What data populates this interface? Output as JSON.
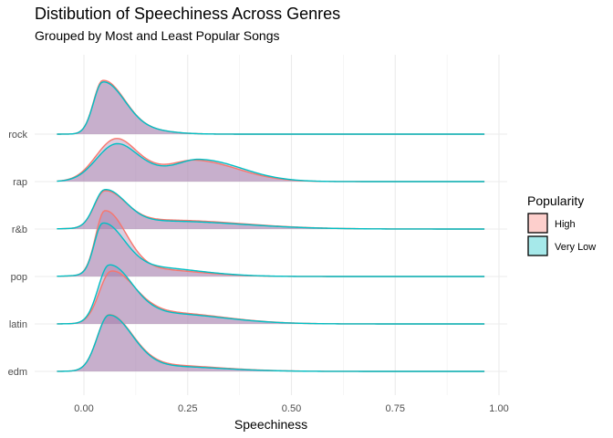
{
  "chart_data": {
    "type": "ridgeline",
    "title": "Distibution of Speechiness Across Genres",
    "subtitle": "Grouped by Most and Least Popular Songs",
    "xlabel": "Speechiness",
    "ylabel": "",
    "xlim": [
      -0.1,
      1.0
    ],
    "x_ticks": [
      0.0,
      0.25,
      0.5,
      0.75,
      1.0
    ],
    "x_tick_labels": [
      "0.00",
      "0.25",
      "0.50",
      "0.75",
      "1.00"
    ],
    "categories": [
      "edm",
      "latin",
      "pop",
      "r&b",
      "rap",
      "rock"
    ],
    "legend": {
      "title": "Popularity",
      "position": "right",
      "entries": [
        {
          "label": "High",
          "color": "#F8766D"
        },
        {
          "label": "Very Low",
          "color": "#00BFC4"
        }
      ]
    },
    "fill_color": "#A882AF",
    "grid": true,
    "x_range": [
      -0.065,
      0.965
    ],
    "series": [
      {
        "name": "High",
        "color": "#F8766D",
        "genres": {
          "rock": [
            [
              0.045,
              1.0,
              0.022,
              0.05
            ],
            [
              0.12,
              0.1,
              0.05,
              0.07
            ]
          ],
          "rap": [
            [
              0.07,
              0.6,
              0.045,
              0.045
            ],
            [
              0.27,
              0.4,
              0.06,
              0.1
            ],
            [
              0.12,
              0.3,
              0.06,
              0.06
            ]
          ],
          "r&b": [
            [
              0.05,
              0.68,
              0.025,
              0.05
            ],
            [
              0.2,
              0.17,
              0.1,
              0.18
            ]
          ],
          "pop": [
            [
              0.05,
              1.2,
              0.022,
              0.05
            ],
            [
              0.15,
              0.14,
              0.08,
              0.12
            ]
          ],
          "latin": [
            [
              0.065,
              0.95,
              0.028,
              0.055
            ],
            [
              0.19,
              0.22,
              0.08,
              0.14
            ]
          ],
          "edm": [
            [
              0.06,
              1.05,
              0.028,
              0.055
            ],
            [
              0.18,
              0.12,
              0.08,
              0.14
            ]
          ]
        }
      },
      {
        "name": "Very Low",
        "color": "#00BFC4",
        "genres": {
          "rock": [
            [
              0.045,
              0.97,
              0.022,
              0.05
            ],
            [
              0.12,
              0.1,
              0.05,
              0.07
            ]
          ],
          "rap": [
            [
              0.07,
              0.5,
              0.045,
              0.045
            ],
            [
              0.28,
              0.42,
              0.06,
              0.1
            ],
            [
              0.12,
              0.3,
              0.06,
              0.06
            ]
          ],
          "r&b": [
            [
              0.05,
              0.71,
              0.025,
              0.05
            ],
            [
              0.2,
              0.15,
              0.1,
              0.18
            ]
          ],
          "pop": [
            [
              0.045,
              0.95,
              0.02,
              0.05
            ],
            [
              0.15,
              0.18,
              0.08,
              0.12
            ]
          ],
          "latin": [
            [
              0.06,
              1.08,
              0.026,
              0.055
            ],
            [
              0.19,
              0.2,
              0.08,
              0.14
            ]
          ],
          "edm": [
            [
              0.06,
              1.05,
              0.028,
              0.055
            ],
            [
              0.18,
              0.1,
              0.08,
              0.14
            ]
          ]
        }
      }
    ]
  }
}
